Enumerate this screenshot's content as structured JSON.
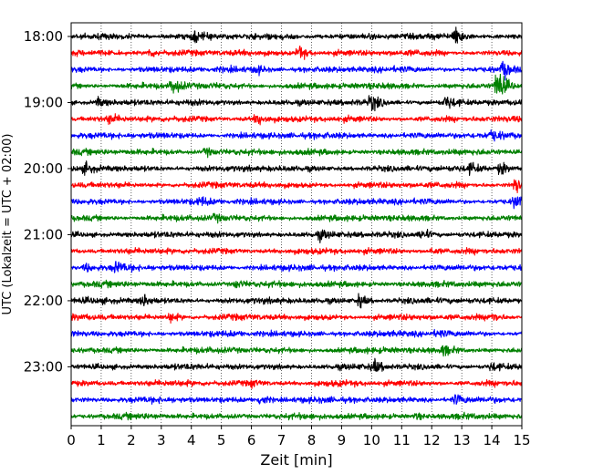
{
  "chart_data": {
    "type": "line",
    "subtype": "helicorder",
    "xlabel": "Zeit  [min]",
    "ylabel": "UTC (Lokalzeit = UTC + 02:00)",
    "xlim": [
      0,
      15
    ],
    "x_ticks": [
      "0",
      "1",
      "2",
      "3",
      "4",
      "5",
      "6",
      "7",
      "8",
      "9",
      "10",
      "11",
      "12",
      "13",
      "14",
      "15"
    ],
    "y_ticks": [
      "18:00",
      "19:00",
      "20:00",
      "21:00",
      "22:00",
      "23:00"
    ],
    "grid": "vertical dotted",
    "colors": [
      "#000000",
      "#ff0000",
      "#0000ff",
      "#008000"
    ],
    "trace_minutes_per_line": 15,
    "traces": [
      {
        "start": "18:00",
        "color": "#000000",
        "events": [
          {
            "t": 12.8,
            "amp": 1.0
          },
          {
            "t": 4.1,
            "amp": 0.5
          }
        ]
      },
      {
        "start": "18:15",
        "color": "#ff0000",
        "events": [
          {
            "t": 7.6,
            "amp": 0.8
          },
          {
            "t": 2.6,
            "amp": 0.4
          }
        ]
      },
      {
        "start": "18:30",
        "color": "#0000ff",
        "events": [
          {
            "t": 14.4,
            "amp": 0.9
          },
          {
            "t": 6.2,
            "amp": 0.4
          }
        ]
      },
      {
        "start": "18:45",
        "color": "#008000",
        "events": [
          {
            "t": 3.4,
            "amp": 0.9
          },
          {
            "t": 14.2,
            "amp": 2.0
          }
        ]
      },
      {
        "start": "19:00",
        "color": "#000000",
        "events": [
          {
            "t": 10.0,
            "amp": 0.8
          },
          {
            "t": 12.5,
            "amp": 0.7
          },
          {
            "t": 0.9,
            "amp": 0.4
          }
        ]
      },
      {
        "start": "19:15",
        "color": "#ff0000",
        "events": [
          {
            "t": 6.2,
            "amp": 0.6
          },
          {
            "t": 1.3,
            "amp": 0.4
          }
        ]
      },
      {
        "start": "19:30",
        "color": "#0000ff",
        "events": [
          {
            "t": 14.0,
            "amp": 0.5
          }
        ]
      },
      {
        "start": "19:45",
        "color": "#008000",
        "events": [
          {
            "t": 4.5,
            "amp": 0.4
          }
        ]
      },
      {
        "start": "20:00",
        "color": "#000000",
        "events": [
          {
            "t": 14.3,
            "amp": 0.7
          },
          {
            "t": 0.5,
            "amp": 0.5
          },
          {
            "t": 13.3,
            "amp": 0.5
          }
        ]
      },
      {
        "start": "20:15",
        "color": "#ff0000",
        "events": [
          {
            "t": 14.8,
            "amp": 0.8
          }
        ]
      },
      {
        "start": "20:30",
        "color": "#0000ff",
        "events": [
          {
            "t": 14.8,
            "amp": 0.7
          },
          {
            "t": 4.3,
            "amp": 0.4
          }
        ]
      },
      {
        "start": "20:45",
        "color": "#008000",
        "events": [
          {
            "t": 4.8,
            "amp": 0.3
          }
        ]
      },
      {
        "start": "21:00",
        "color": "#000000",
        "events": [
          {
            "t": 11.7,
            "amp": 0.6
          },
          {
            "t": 8.3,
            "amp": 0.4
          }
        ]
      },
      {
        "start": "21:15",
        "color": "#ff0000",
        "events": [
          {
            "t": 12.0,
            "amp": 0.3
          }
        ]
      },
      {
        "start": "21:30",
        "color": "#0000ff",
        "events": [
          {
            "t": 1.5,
            "amp": 0.6
          },
          {
            "t": 0.5,
            "amp": 0.4
          }
        ]
      },
      {
        "start": "21:45",
        "color": "#008000",
        "events": [
          {
            "t": 5.5,
            "amp": 0.4
          }
        ]
      },
      {
        "start": "22:00",
        "color": "#000000",
        "events": [
          {
            "t": 9.6,
            "amp": 0.7
          },
          {
            "t": 2.4,
            "amp": 0.6
          }
        ]
      },
      {
        "start": "22:15",
        "color": "#ff0000",
        "events": [
          {
            "t": 3.3,
            "amp": 0.5
          },
          {
            "t": 14.0,
            "amp": 0.5
          }
        ]
      },
      {
        "start": "22:30",
        "color": "#0000ff",
        "events": [
          {
            "t": 12.2,
            "amp": 0.3
          }
        ]
      },
      {
        "start": "22:45",
        "color": "#008000",
        "events": [
          {
            "t": 12.4,
            "amp": 0.5
          }
        ]
      },
      {
        "start": "23:00",
        "color": "#000000",
        "events": [
          {
            "t": 10.1,
            "amp": 0.6
          },
          {
            "t": 14.0,
            "amp": 0.4
          }
        ]
      },
      {
        "start": "23:15",
        "color": "#ff0000",
        "events": [
          {
            "t": 6.0,
            "amp": 0.3
          }
        ]
      },
      {
        "start": "23:30",
        "color": "#0000ff",
        "events": [
          {
            "t": 6.3,
            "amp": 0.6
          },
          {
            "t": 12.8,
            "amp": 0.5
          }
        ]
      },
      {
        "start": "23:45",
        "color": "#008000",
        "events": [
          {
            "t": 11.5,
            "amp": 0.3
          }
        ]
      }
    ]
  }
}
